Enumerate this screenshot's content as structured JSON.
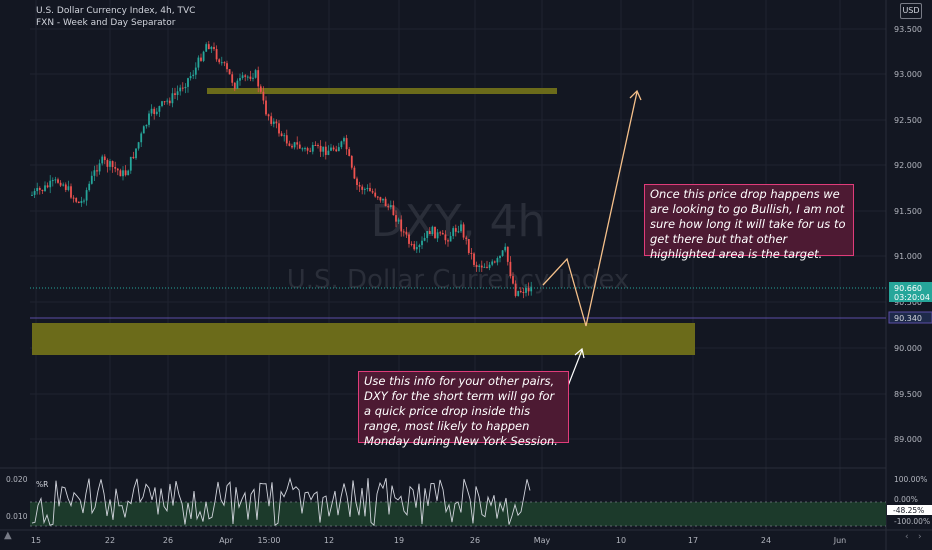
{
  "header": {
    "title": "U.S. Dollar Currency Index, 4h, TVC",
    "indicator": "FXN - Week and Day Separator",
    "currency_button": "USD"
  },
  "watermark": {
    "symbol": "DXY, 4h",
    "name": "U.S. Dollar Currency Index"
  },
  "notes": {
    "bullish": "Once this price drop happens we are looking to go Bullish, I am not sure how long it will take for us to get there but that other highlighted area is the target.",
    "pairs": "Use this info for your other pairs, DXY for the short term will go for a quick price drop inside this range, most likely to happen Monday during New York Session."
  },
  "price_axis": {
    "ticks": [
      "93.500",
      "93.000",
      "92.500",
      "92.000",
      "91.500",
      "91.000",
      "90.500",
      "90.000",
      "89.500",
      "89.000"
    ],
    "current_price": "90.660",
    "countdown": "03:20:04",
    "line_price": "90.340"
  },
  "time_axis": {
    "ticks": [
      "15",
      "22",
      "26",
      "Apr",
      "15:00",
      "12",
      "19",
      "26",
      "May",
      "10",
      "17",
      "24",
      "Jun"
    ]
  },
  "oscillator": {
    "name": "%R",
    "left_ticks": [
      "0.020",
      "0.010"
    ],
    "right_ticks": [
      "100.00%",
      "0.00%",
      "-100.00%"
    ],
    "current_value": "-48.25%"
  },
  "colors": {
    "background": "#131722",
    "up": "#26a69a",
    "down": "#ef5350",
    "zone": "#6b6b1a",
    "note_bg": "#4d1a33",
    "note_border": "#e03c7a",
    "projection": "#f5c08a"
  },
  "icons": {
    "logo": "tradingview-logo-icon",
    "left": "chevron-left-icon",
    "right": "chevron-right-icon"
  }
}
